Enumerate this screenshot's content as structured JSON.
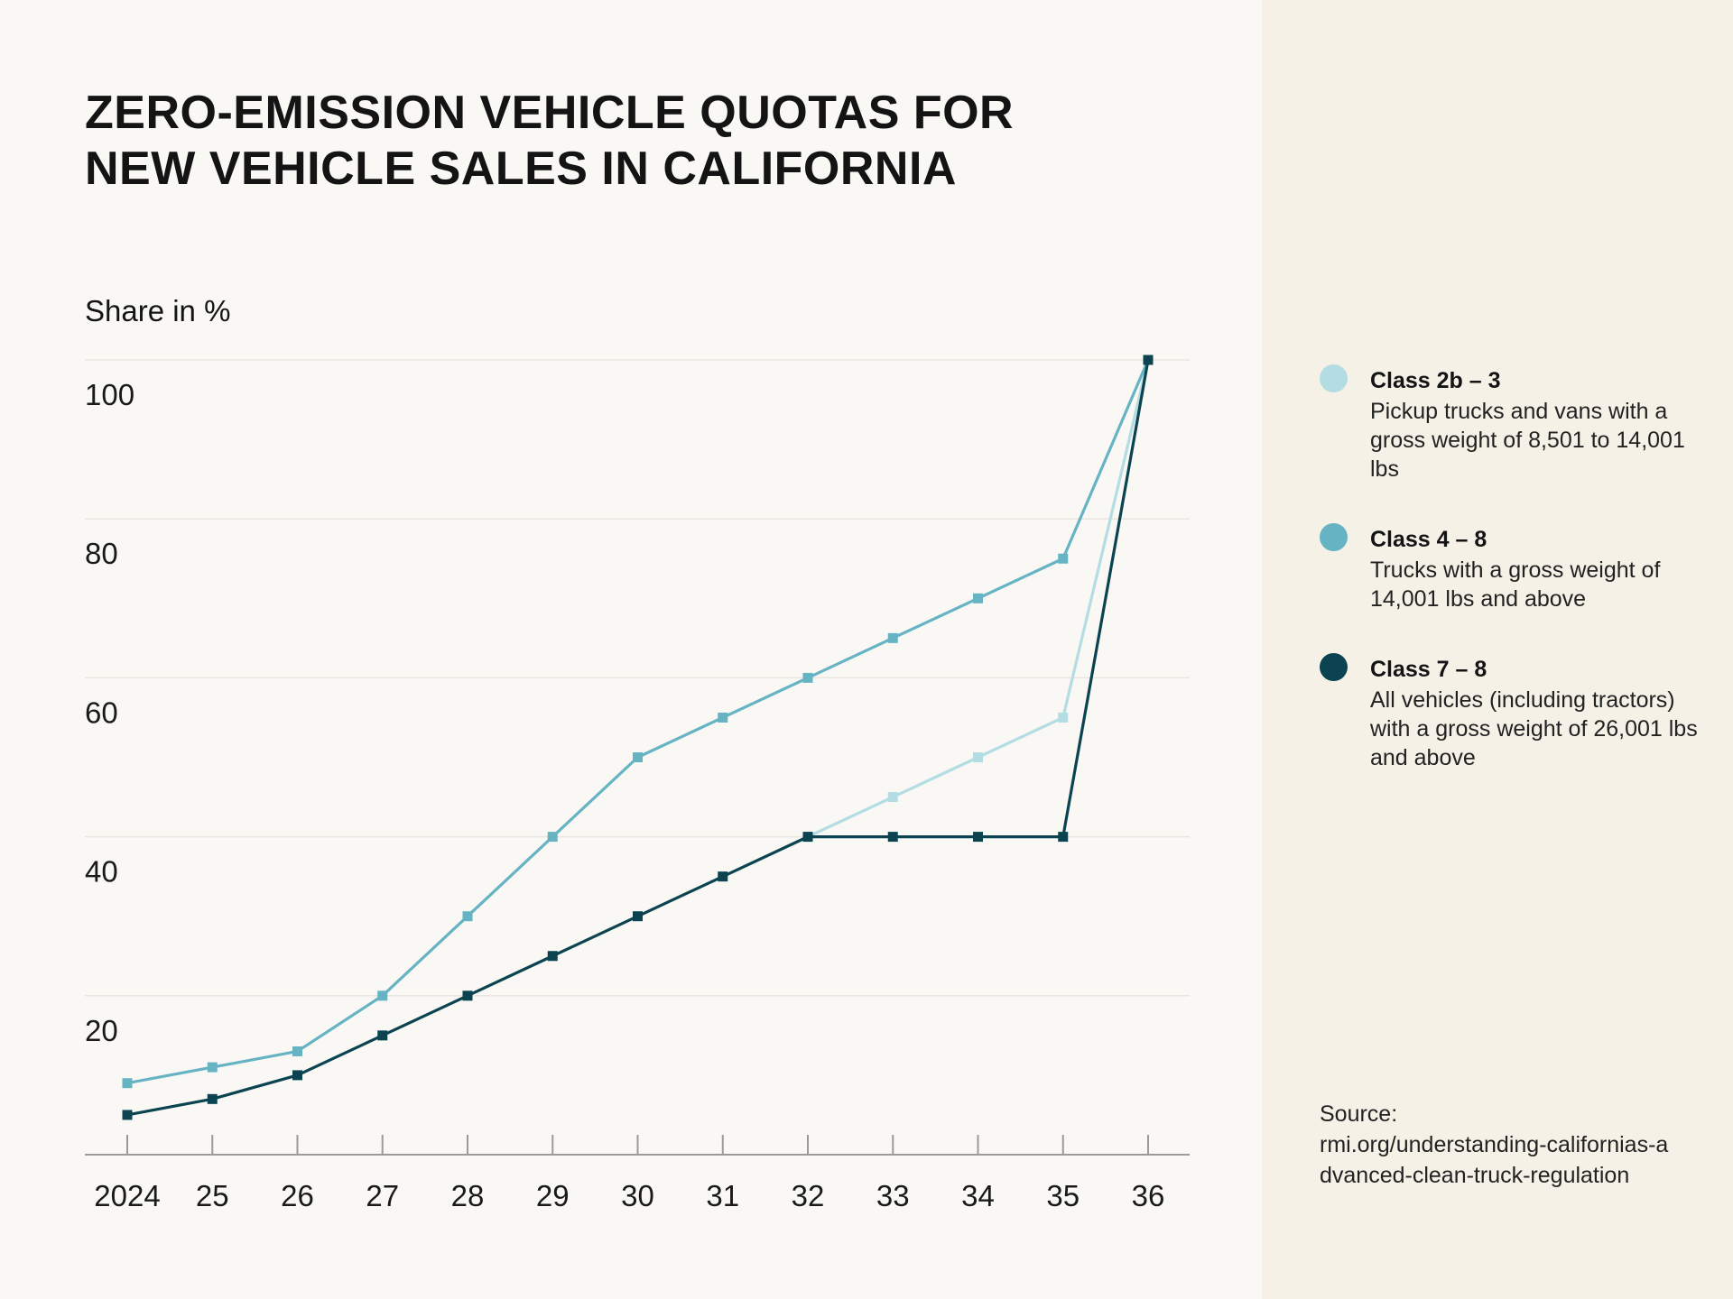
{
  "title": {
    "line1": "ZERO-EMISSION VEHICLE QUOTAS FOR",
    "line2": "NEW VEHICLE SALES IN CALIFORNIA"
  },
  "y_axis_label": "Share in %",
  "legend": [
    {
      "name": "Class 2b – 3",
      "description": "Pickup trucks and vans with a gross weight of 8,501 to 14,001 lbs",
      "color": "#b3dde3"
    },
    {
      "name": "Class 4 – 8",
      "description": "Trucks with a gross weight of 14,001 lbs and above",
      "color": "#66b3c4"
    },
    {
      "name": "Class 7 – 8",
      "description": "All vehicles (including tractors) with a gross weight of 26,001 lbs and above",
      "color": "#0b4450"
    }
  ],
  "source": {
    "label": "Source:",
    "text": "rmi.org/understanding-californias-advanced-clean-truck-regulation"
  },
  "chart_data": {
    "type": "line",
    "title": "ZERO-EMISSION VEHICLE QUOTAS FOR NEW VEHICLE SALES IN CALIFORNIA",
    "xlabel": "",
    "ylabel": "Share in %",
    "ylim": [
      0,
      100
    ],
    "yticks": [
      20,
      40,
      60,
      80,
      100
    ],
    "grid": true,
    "categories": [
      "2024",
      "25",
      "26",
      "27",
      "28",
      "29",
      "30",
      "31",
      "32",
      "33",
      "34",
      "35",
      "36"
    ],
    "series": [
      {
        "name": "Class 2b – 3",
        "color": "#b3dde3",
        "values": [
          null,
          null,
          null,
          null,
          null,
          null,
          null,
          null,
          40,
          45,
          50,
          55,
          100
        ]
      },
      {
        "name": "Class 4 – 8",
        "color": "#66b3c4",
        "values": [
          9,
          11,
          13,
          20,
          30,
          40,
          50,
          55,
          60,
          65,
          70,
          75,
          100
        ]
      },
      {
        "name": "Class 7 – 8",
        "color": "#0b4450",
        "values": [
          5,
          7,
          10,
          15,
          20,
          25,
          30,
          35,
          40,
          40,
          40,
          40,
          100
        ]
      }
    ]
  }
}
